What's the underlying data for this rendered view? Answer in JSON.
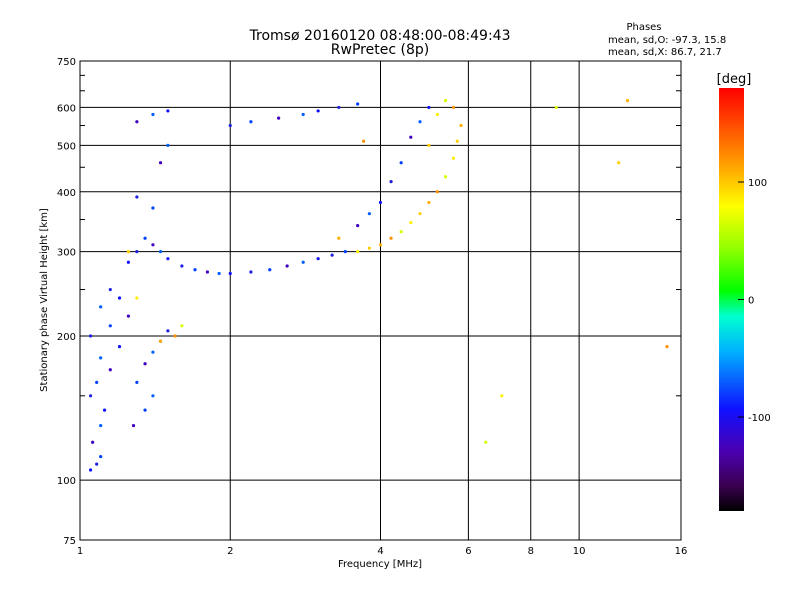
{
  "chart_data": {
    "type": "scatter",
    "title": "Tromsø 20160120 08:48:00-08:49:43",
    "subtitle": "RwPretec (8p)",
    "xlabel": "Frequency [MHz]",
    "ylabel": "Stationary phase Virtual Height [km]",
    "xscale": "log",
    "yscale": "log",
    "xlim": [
      1,
      16
    ],
    "ylim": [
      75,
      750
    ],
    "x_ticks": [
      "1",
      "2",
      "4",
      "6",
      "8",
      "10",
      "16"
    ],
    "y_ticks": [
      "75",
      "100",
      "200",
      "300",
      "400",
      "500",
      "600",
      "750"
    ],
    "x_tick_values": [
      1,
      2,
      4,
      6,
      8,
      10,
      16
    ],
    "y_tick_values": [
      75,
      100,
      200,
      300,
      400,
      500,
      600,
      750
    ],
    "x_grid": [
      1,
      2,
      4,
      6,
      8,
      10,
      16
    ],
    "y_grid": [
      100,
      200,
      300,
      400,
      500,
      600
    ],
    "grid": true,
    "phase_info": {
      "title": "Phases",
      "line1": "mean, sd,O: -97.3, 15.8",
      "line2": "mean, sd,X:  86.7, 21.7"
    },
    "colorbar": {
      "label": "[deg]",
      "range": [
        -180,
        180
      ],
      "ticks": [
        "100",
        "0",
        "-100"
      ],
      "tick_values": [
        100,
        0,
        -100
      ]
    },
    "series": [
      {
        "mode": "O",
        "points": [
          [
            1.05,
            105
          ],
          [
            1.08,
            108
          ],
          [
            1.1,
            112
          ],
          [
            1.06,
            120
          ],
          [
            1.1,
            130
          ],
          [
            1.12,
            140
          ],
          [
            1.05,
            150
          ],
          [
            1.08,
            160
          ],
          [
            1.15,
            170
          ],
          [
            1.1,
            180
          ],
          [
            1.2,
            190
          ],
          [
            1.05,
            200
          ],
          [
            1.15,
            210
          ],
          [
            1.25,
            220
          ],
          [
            1.1,
            230
          ],
          [
            1.2,
            240
          ],
          [
            1.15,
            250
          ],
          [
            1.3,
            160
          ],
          [
            1.35,
            175
          ],
          [
            1.4,
            185
          ],
          [
            1.45,
            195
          ],
          [
            1.5,
            205
          ],
          [
            1.35,
            140
          ],
          [
            1.28,
            130
          ],
          [
            1.4,
            150
          ],
          [
            1.25,
            285
          ],
          [
            1.3,
            300
          ],
          [
            1.35,
            320
          ],
          [
            1.4,
            310
          ],
          [
            1.45,
            300
          ],
          [
            1.5,
            290
          ],
          [
            1.6,
            280
          ],
          [
            1.7,
            275
          ],
          [
            1.8,
            272
          ],
          [
            1.9,
            270
          ],
          [
            2.0,
            270
          ],
          [
            2.2,
            272
          ],
          [
            2.4,
            275
          ],
          [
            2.6,
            280
          ],
          [
            2.8,
            285
          ],
          [
            3.0,
            290
          ],
          [
            3.2,
            295
          ],
          [
            3.4,
            300
          ],
          [
            1.3,
            560
          ],
          [
            1.4,
            580
          ],
          [
            1.5,
            590
          ],
          [
            2.0,
            550
          ],
          [
            2.2,
            560
          ],
          [
            2.5,
            570
          ],
          [
            2.8,
            580
          ],
          [
            3.0,
            590
          ],
          [
            3.3,
            600
          ],
          [
            3.6,
            610
          ],
          [
            3.6,
            340
          ],
          [
            3.8,
            360
          ],
          [
            4.0,
            380
          ],
          [
            4.2,
            420
          ],
          [
            4.4,
            460
          ],
          [
            4.6,
            520
          ],
          [
            4.8,
            560
          ],
          [
            5.0,
            600
          ],
          [
            1.3,
            390
          ],
          [
            1.4,
            370
          ],
          [
            1.45,
            460
          ],
          [
            1.5,
            500
          ]
        ]
      },
      {
        "mode": "X",
        "points": [
          [
            3.6,
            300
          ],
          [
            3.8,
            305
          ],
          [
            4.0,
            310
          ],
          [
            4.2,
            320
          ],
          [
            4.4,
            330
          ],
          [
            4.6,
            345
          ],
          [
            4.8,
            360
          ],
          [
            5.0,
            380
          ],
          [
            5.2,
            400
          ],
          [
            5.4,
            430
          ],
          [
            5.6,
            470
          ],
          [
            5.7,
            510
          ],
          [
            5.8,
            550
          ],
          [
            5.6,
            600
          ],
          [
            5.4,
            620
          ],
          [
            5.2,
            580
          ],
          [
            5.0,
            500
          ],
          [
            1.45,
            195
          ],
          [
            1.55,
            200
          ],
          [
            1.6,
            210
          ],
          [
            1.3,
            240
          ],
          [
            1.25,
            300
          ],
          [
            3.3,
            320
          ],
          [
            3.7,
            510
          ],
          [
            6.5,
            120
          ],
          [
            7.0,
            150
          ],
          [
            12.0,
            460
          ],
          [
            12.5,
            620
          ],
          [
            15.0,
            190
          ],
          [
            9.0,
            600
          ]
        ]
      }
    ]
  }
}
